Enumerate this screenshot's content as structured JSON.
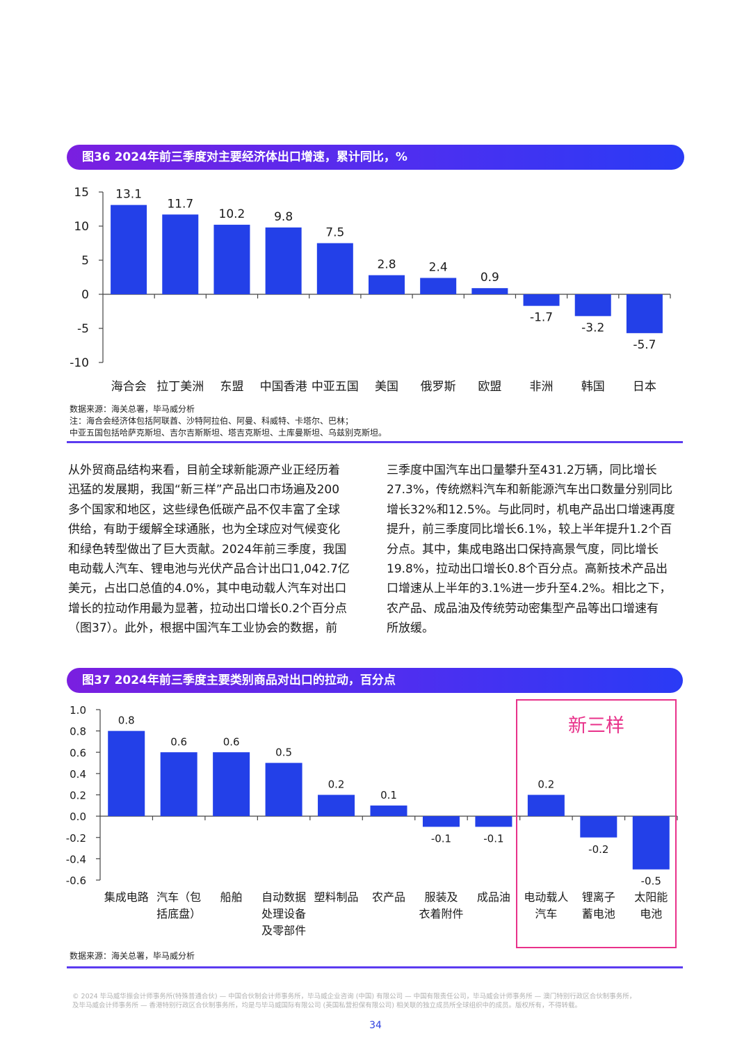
{
  "fig36": {
    "title": "图36 2024年前三季度对主要经济体出口增速，累计同比，%",
    "chart_data": {
      "type": "bar",
      "categories": [
        "海合会",
        "拉丁美洲",
        "东盟",
        "中国香港",
        "中亚五国",
        "美国",
        "俄罗斯",
        "欧盟",
        "非洲",
        "韩国",
        "日本"
      ],
      "values": [
        13.1,
        11.7,
        10.2,
        9.8,
        7.5,
        2.8,
        2.4,
        0.9,
        -1.7,
        -3.2,
        -5.7
      ],
      "value_labels": [
        "13.1",
        "11.7",
        "10.2",
        "9.8",
        "7.5",
        "2.8",
        "2.4",
        "0.9",
        "-1.7",
        "-3.2",
        "-5.7"
      ],
      "yticks": [
        15,
        10,
        5,
        0,
        -5,
        -10
      ],
      "ytick_labels": [
        "15",
        "10",
        "5",
        "0",
        "-5",
        "-10"
      ],
      "ylim": [
        -10,
        15
      ],
      "bar_color": "#2340e8"
    },
    "notes": [
      "数据来源：海关总署，毕马威分析",
      "注：海合会经济体包括阿联酋、沙特阿拉伯、阿曼、科威特、卡塔尔、巴林；",
      "中亚五国包括哈萨克斯坦、吉尔吉斯斯坦、塔吉克斯坦、土库曼斯坦、乌兹别克斯坦。"
    ]
  },
  "body": {
    "left_lines": [
      "从外贸商品结构来看，目前全球新能源产业正经历着",
      "迅猛的发展期，我国“新三样”产品出口市场遍及200",
      "多个国家和地区，这些绿色低碳产品不仅丰富了全球",
      "供给，有助于缓解全球通胀，也为全球应对气候变化",
      "和绿色转型做出了巨大贡献。2024年前三季度，我国",
      "电动载人汽车、锂电池与光伏产品合计出口1,042.7亿",
      "美元，占出口总值的4.0%，其中电动载人汽车对出口",
      "增长的拉动作用最为显著，拉动出口增长0.2个百分点",
      "（图37）。此外，根据中国汽车工业协会的数据，前"
    ],
    "right_lines": [
      "三季度中国汽车出口量攀升至431.2万辆，同比增长",
      "27.3%，传统燃料汽车和新能源汽车出口数量分别同比",
      "增长32%和12.5%。与此同时，机电产品出口增速再度",
      "提升，前三季度同比增长6.1%，较上半年提升1.2个百",
      "分点。其中，集成电路出口保持高景气度，同比增长",
      "19.8%，拉动出口增长0.8个百分点。高新技术产品出",
      "口增速从上半年的3.1%进一步升至4.2%。相比之下，",
      "农产品、成品油及传统劳动密集型产品等出口增速有",
      "所放缓。"
    ]
  },
  "fig37": {
    "title": "图37  2024年前三季度主要类别商品对出口的拉动，百分点",
    "chart_data": {
      "type": "bar",
      "categories": [
        [
          "集成电路"
        ],
        [
          "汽车（包",
          "括底盘）"
        ],
        [
          "船舶"
        ],
        [
          "自动数据",
          "处理设备",
          "及零部件"
        ],
        [
          "塑料制品"
        ],
        [
          "农产品"
        ],
        [
          "服装及",
          "衣着附件"
        ],
        [
          "成品油"
        ],
        [
          "电动载人",
          "汽车"
        ],
        [
          "锂离子",
          "蓄电池"
        ],
        [
          "太阳能",
          "电池"
        ]
      ],
      "values": [
        0.8,
        0.6,
        0.6,
        0.5,
        0.2,
        0.1,
        -0.1,
        -0.1,
        0.2,
        -0.2,
        -0.5
      ],
      "value_labels": [
        "0.8",
        "0.6",
        "0.6",
        "0.5",
        "0.2",
        "0.1",
        "-0.1",
        "-0.1",
        "0.2",
        "-0.2",
        "-0.5"
      ],
      "yticks": [
        1.0,
        0.8,
        0.6,
        0.4,
        0.2,
        0.0,
        -0.2,
        -0.4,
        -0.6
      ],
      "ytick_labels": [
        "1.0",
        "0.8",
        "0.6",
        "0.4",
        "0.2",
        "0.0",
        "-0.2",
        "-0.4",
        "-0.6"
      ],
      "ylim": [
        -0.6,
        1.0
      ],
      "bar_color": "#2340e8",
      "annotation": "新三样",
      "annotation_color": "#e8318a"
    },
    "notes": [
      "数据来源：海关总署，毕马威分析"
    ]
  },
  "footer": {
    "lines": [
      "© 2024 毕马威华振会计师事务所(特殊普通合伙) — 中国合伙制会计师事务所，毕马威企业咨询 (中国) 有限公司 — 中国有限责任公司，毕马威会计师事务所 — 澳门特别行政区合伙制事务所，",
      "及毕马威会计师事务所 — 香港特别行政区合伙制事务所，均是与毕马威国际有限公司 (英国私营担保有限公司) 相关联的独立成员所全球组织中的成员。版权所有，不得转载。"
    ],
    "page_number": "34"
  }
}
